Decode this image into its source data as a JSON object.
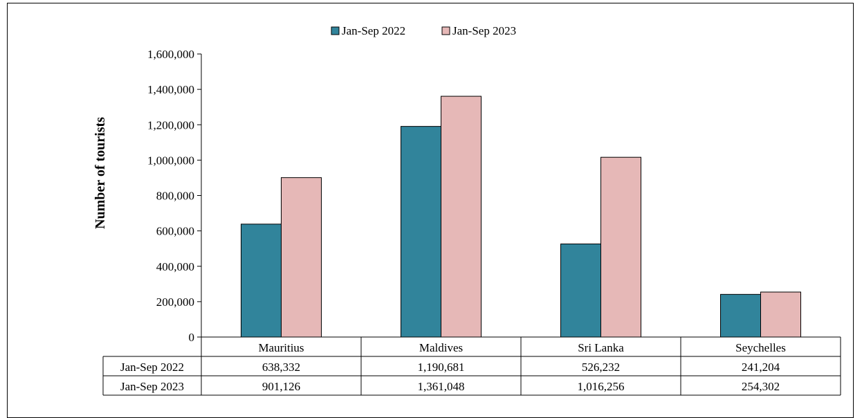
{
  "chart_data": {
    "type": "bar",
    "title": "",
    "ylabel": "Number of tourists",
    "xlabel": "",
    "ylim": [
      0,
      1600000
    ],
    "yticks": [
      0,
      200000,
      400000,
      600000,
      800000,
      1000000,
      1200000,
      1400000,
      1600000
    ],
    "ytick_labels": [
      "0",
      "200,000",
      "400,000",
      "600,000",
      "800,000",
      "1,000,000",
      "1,200,000",
      "1,400,000",
      "1,600,000"
    ],
    "categories": [
      "Mauritius",
      "Maldives",
      "Sri Lanka",
      "Seychelles"
    ],
    "series": [
      {
        "name": "Jan-Sep 2022",
        "color": "#31849b",
        "values": [
          638332,
          1190681,
          526232,
          241204
        ],
        "labels": [
          "638,332",
          "1,190,681",
          "526,232",
          "241,204"
        ]
      },
      {
        "name": "Jan-Sep 2023",
        "color": "#e6b8b7",
        "values": [
          901126,
          1361048,
          1016256,
          254302
        ],
        "labels": [
          "901,126",
          "1,361,048",
          "1,016,256",
          "254,302"
        ]
      }
    ],
    "legend_position": "top",
    "grid": false,
    "data_table": true
  }
}
